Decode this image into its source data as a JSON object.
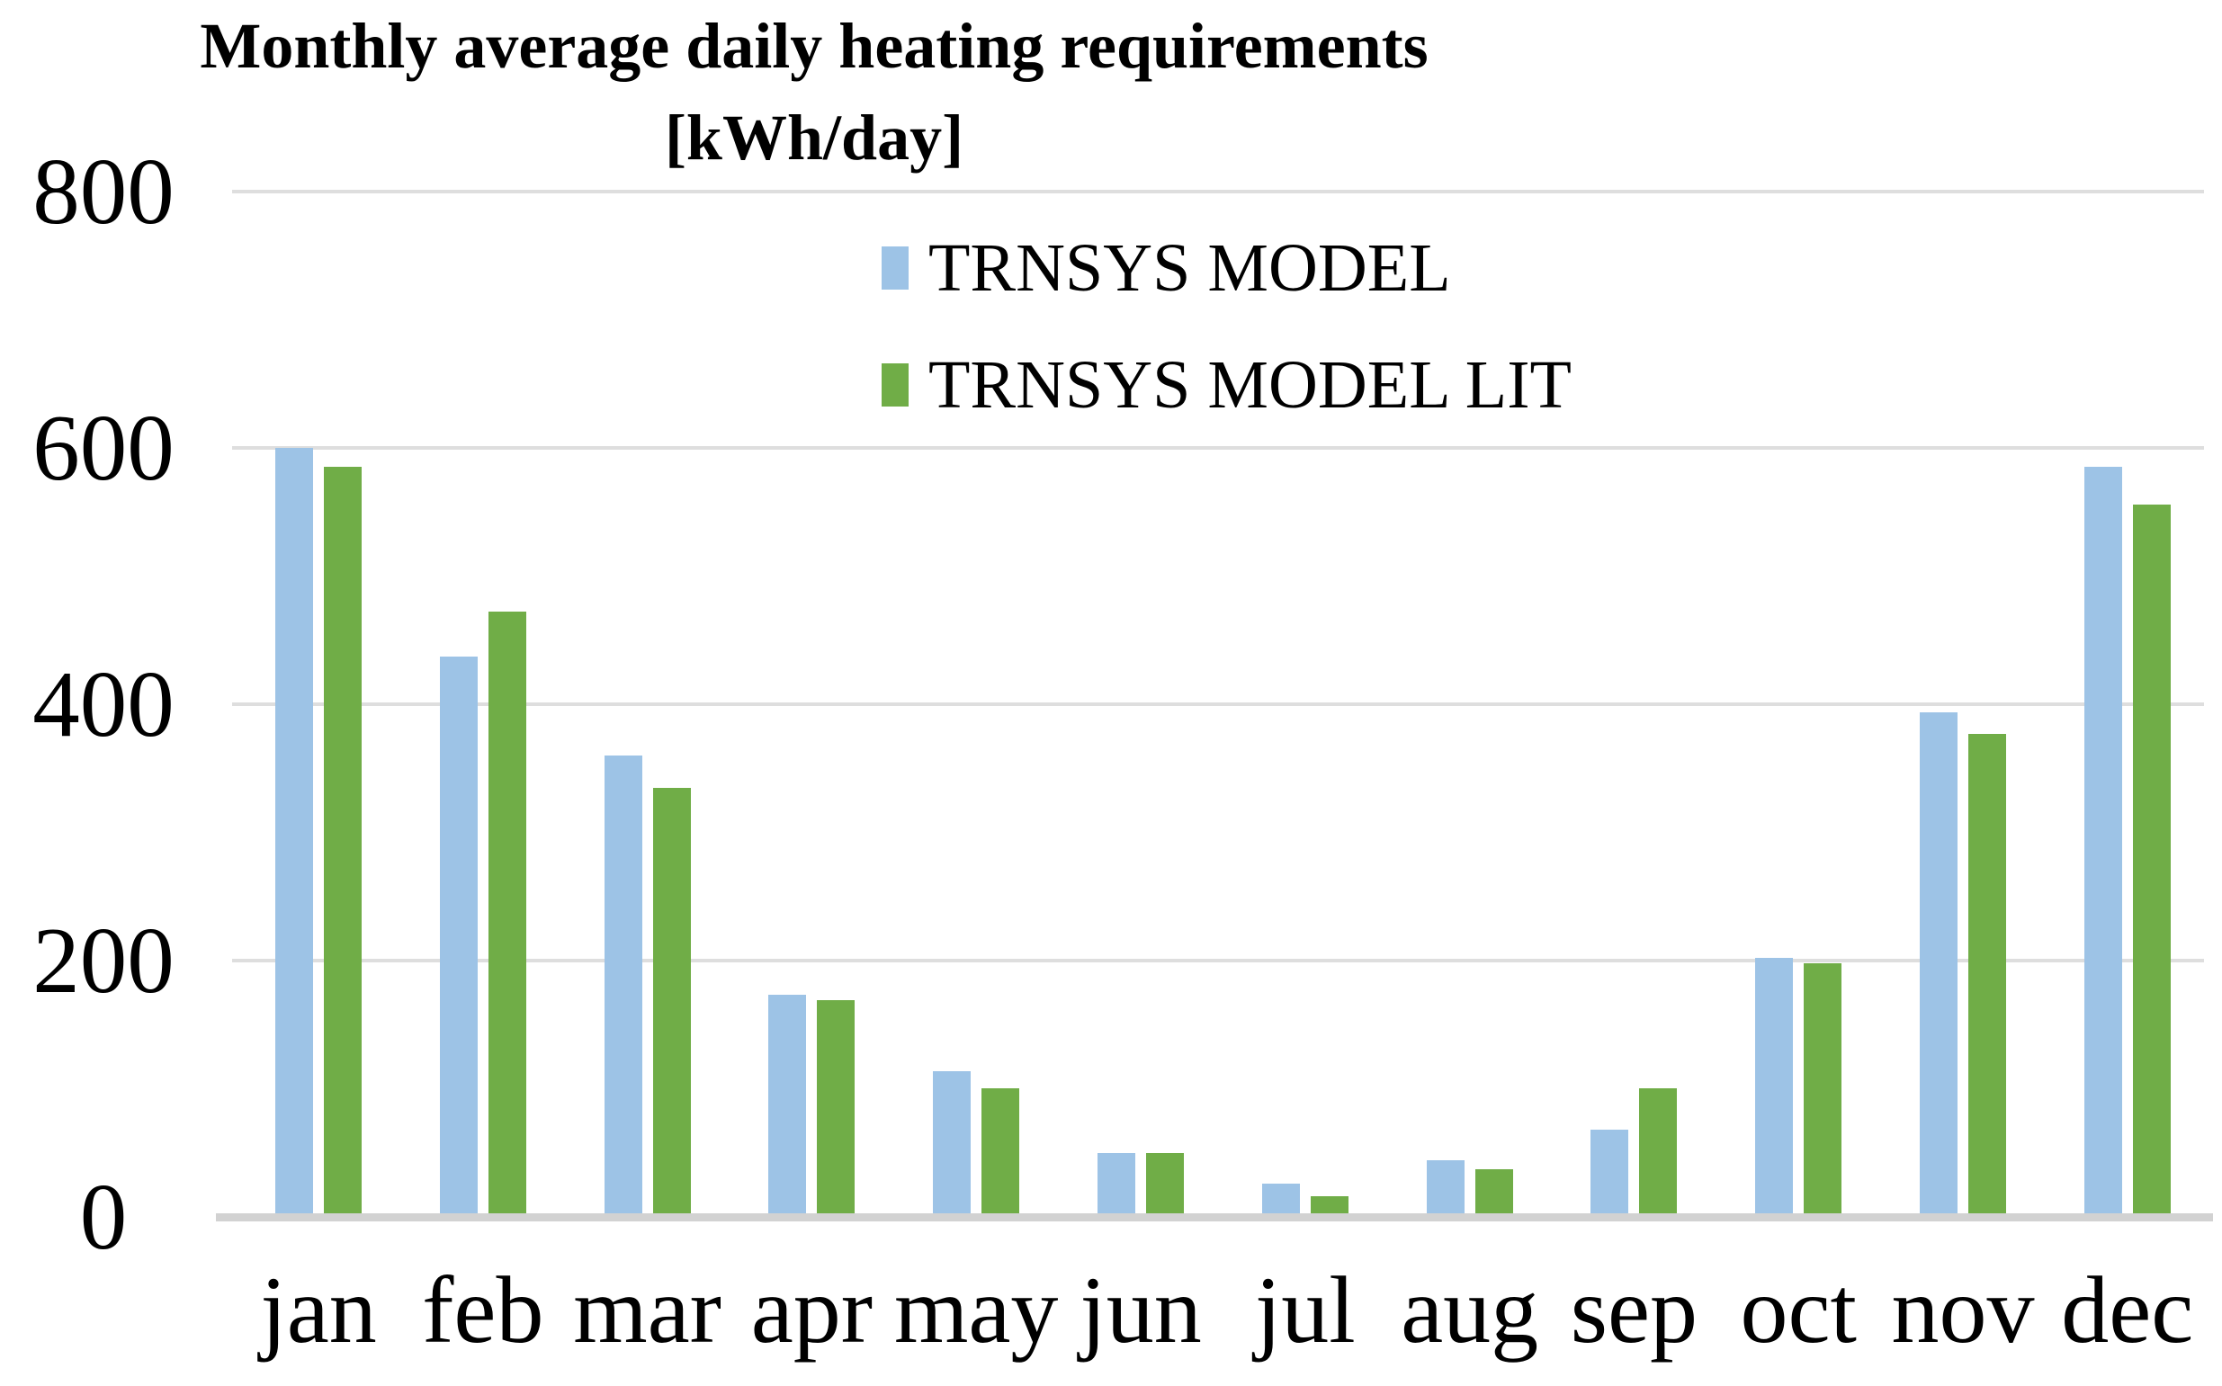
{
  "title": {
    "line1": "Monthly average daily heating requirements",
    "line2": "[kWh/day]"
  },
  "legend": [
    {
      "label": "TRNSYS MODEL",
      "color": "#9DC3E6"
    },
    {
      "label": "TRNSYS MODEL LIT",
      "color": "#70AD47"
    }
  ],
  "colors": {
    "background": "#FFFFFF",
    "text": "#000000",
    "gridline": "#DEDEDE",
    "baseline": "#D2D2D2",
    "series_blue": "#9DC3E6",
    "series_green": "#70AD47"
  },
  "chart_data": {
    "type": "bar",
    "title": "Monthly average daily heating requirements [kWh/day]",
    "xlabel": "",
    "ylabel": "",
    "categories": [
      "jan",
      "feb",
      "mar",
      "apr",
      "may",
      "jun",
      "jul",
      "aug",
      "sep",
      "oct",
      "nov",
      "dec"
    ],
    "series": [
      {
        "name": "TRNSYS MODEL",
        "color": "#9DC3E6",
        "values": [
          600,
          437,
          360,
          173,
          114,
          50,
          26,
          44,
          68,
          202,
          394,
          585
        ]
      },
      {
        "name": "TRNSYS MODEL LIT",
        "color": "#70AD47",
        "values": [
          585,
          472,
          335,
          169,
          100,
          50,
          16,
          37,
          100,
          198,
          377,
          556
        ]
      }
    ],
    "ylim": [
      0,
      800
    ],
    "yticks": [
      0,
      200,
      400,
      600,
      800
    ],
    "grid": "horizontal",
    "legend_position": "top-center-inside"
  }
}
